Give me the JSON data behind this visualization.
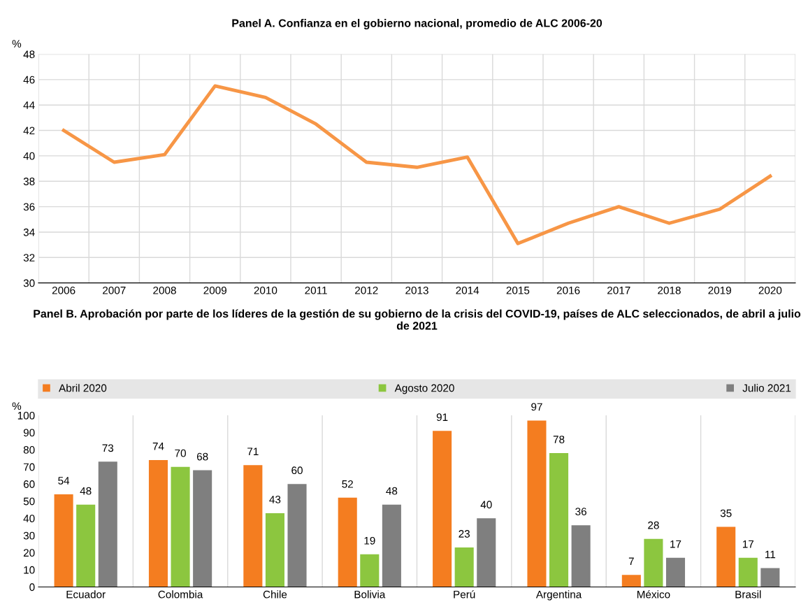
{
  "chart_data": [
    {
      "type": "line",
      "title": "Panel A. Confianza en el gobierno nacional, promedio de ALC 2006-20",
      "ylabel": "%",
      "categories": [
        "2006",
        "2007",
        "2008",
        "2009",
        "2010",
        "2011",
        "2012",
        "2013",
        "2014",
        "2015",
        "2016",
        "2017",
        "2018",
        "2019",
        "2020"
      ],
      "series": [
        {
          "color": "#f79646",
          "values": [
            42.0,
            39.5,
            40.1,
            45.5,
            44.6,
            42.5,
            39.5,
            39.1,
            39.9,
            33.1,
            34.7,
            36.0,
            34.7,
            35.8,
            38.4
          ]
        }
      ],
      "ylim": [
        30,
        48
      ],
      "yticks": [
        30,
        32,
        34,
        36,
        38,
        40,
        42,
        44,
        46,
        48
      ],
      "grid": true,
      "marker": "none",
      "line_style": "solid"
    },
    {
      "type": "bar",
      "title": "Panel B. Aprobación por parte de los líderes de la gestión de su gobierno de la crisis del COVID-19, países de ALC seleccionados, de abril a julio de 2021",
      "ylabel": "%",
      "categories": [
        "Ecuador",
        "Colombia",
        "Chile",
        "Bolivia",
        "Perú",
        "Argentina",
        "México",
        "Brasil"
      ],
      "series": [
        {
          "name": "Abril 2020",
          "color": "#f47d20",
          "values": [
            54,
            74,
            71,
            52,
            91,
            97,
            7,
            35
          ]
        },
        {
          "name": "Agosto 2020",
          "color": "#8cc63f",
          "values": [
            48,
            70,
            43,
            19,
            23,
            78,
            28,
            17
          ]
        },
        {
          "name": "Julio 2021",
          "color": "#7f7f7f",
          "values": [
            73,
            68,
            60,
            48,
            40,
            36,
            17,
            11
          ]
        }
      ],
      "ylim": [
        0,
        100
      ],
      "yticks": [
        0,
        10,
        20,
        30,
        40,
        50,
        60,
        70,
        80,
        90,
        100
      ],
      "grid": "x",
      "legend": "top",
      "data_labels": true
    }
  ]
}
